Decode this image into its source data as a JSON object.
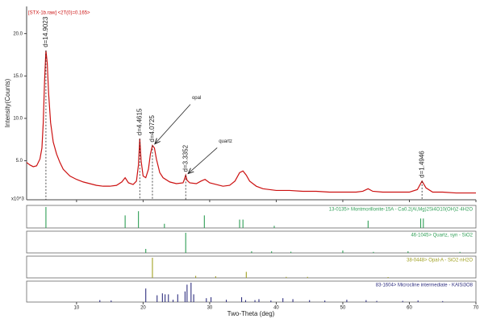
{
  "chart_data": {
    "type": "line",
    "title": "[STX-1b.raw] <2T(0)=0.165>",
    "x_label": "Two-Theta (deg)",
    "y_label": "Intensity(Counts)",
    "y_unit_label": "x10^3",
    "xlim": [
      2.5,
      70
    ],
    "xticks": [
      10,
      20,
      30,
      40,
      50,
      60,
      70
    ],
    "ylim": [
      0.4,
      23.2
    ],
    "yticks": [
      {
        "value": 5,
        "label": "5.0"
      },
      {
        "value": 10,
        "label": "10.0"
      },
      {
        "value": 15,
        "label": "15.0"
      },
      {
        "value": 20,
        "label": "20.0"
      }
    ],
    "x": [
      2.5,
      3,
      3.5,
      4,
      4.5,
      4.8,
      5.0,
      5.2,
      5.4,
      5.6,
      5.8,
      6.1,
      6.5,
      7,
      7.5,
      8,
      9,
      10,
      11,
      12,
      13,
      14,
      15,
      16,
      16.8,
      17.3,
      17.8,
      18.5,
      19.0,
      19.3,
      19.5,
      19.7,
      20.0,
      20.4,
      20.8,
      21.1,
      21.4,
      21.7,
      22.0,
      22.5,
      23,
      24,
      25,
      26,
      26.2,
      26.4,
      26.6,
      27,
      28,
      28.7,
      29.3,
      30,
      31,
      32,
      33,
      33.8,
      34.5,
      35,
      35.5,
      36,
      37,
      38,
      40,
      42,
      44,
      46,
      48,
      50,
      52,
      53,
      53.8,
      54.5,
      56,
      58,
      60,
      61.2,
      61.9,
      62.5,
      63.5,
      65,
      67,
      70
    ],
    "series": [
      {
        "color": "#cc1111",
        "values": [
          4.8,
          4.5,
          4.3,
          4.4,
          5.2,
          6.5,
          9.5,
          14.5,
          18,
          16.5,
          13,
          9.5,
          7.2,
          5.8,
          4.8,
          4.0,
          3.2,
          2.8,
          2.5,
          2.3,
          2.1,
          2.0,
          2.0,
          2.1,
          2.5,
          3.0,
          2.4,
          2.2,
          2.6,
          4.5,
          7.6,
          5.0,
          3.2,
          3.0,
          4.0,
          5.8,
          6.8,
          6.5,
          5.2,
          3.6,
          3.0,
          2.5,
          2.3,
          2.4,
          2.8,
          3.3,
          2.7,
          2.4,
          2.3,
          2.6,
          2.8,
          2.4,
          2.2,
          2.0,
          2.1,
          2.6,
          3.6,
          3.8,
          3.3,
          2.6,
          2.0,
          1.7,
          1.5,
          1.5,
          1.4,
          1.4,
          1.3,
          1.3,
          1.3,
          1.4,
          1.7,
          1.4,
          1.3,
          1.3,
          1.3,
          1.6,
          2.6,
          1.8,
          1.3,
          1.3,
          1.2,
          1.2
        ]
      }
    ],
    "d_labels": [
      {
        "text": "d=14.9023",
        "x": 5.4
      },
      {
        "text": "d=4.4615",
        "x": 19.5
      },
      {
        "text": "d=4.0725",
        "x": 21.4
      },
      {
        "text": "d=3.3352",
        "x": 26.4
      },
      {
        "text": "d=1.4946",
        "x": 61.9
      }
    ],
    "phase_labels": [
      {
        "text": "opal",
        "x": 21.4
      },
      {
        "text": "quartz",
        "x": 26.4
      }
    ],
    "reference_patterns": [
      {
        "name": "13-0135> Montmorillonite-15A - Ca0.2(Al,Mg)2Si4O10(OH)2·4H2O",
        "color": "#2e9e55",
        "positions": [
          5.4,
          17.3,
          19.3,
          23.2,
          29.2,
          34.5,
          35.0,
          39.7,
          53.8,
          61.7,
          62.1
        ],
        "values": [
          100,
          60,
          80,
          20,
          60,
          40,
          40,
          10,
          35,
          45,
          45
        ]
      },
      {
        "name": "46-1045> Quartz, syn - SiO2",
        "color": "#2e9e55",
        "positions": [
          20.4,
          26.4,
          36.3,
          39.3,
          42.2,
          50.0,
          54.6,
          59.8,
          67.6
        ],
        "values": [
          20,
          100,
          8,
          8,
          6,
          12,
          5,
          8,
          5
        ]
      },
      {
        "name": "38-0448> Opal-A - SiO2·nH2O",
        "color": "#a0a020",
        "positions": [
          21.4,
          27.9,
          30.9,
          35.5,
          41.5,
          44.7,
          56.8
        ],
        "values": [
          100,
          10,
          8,
          30,
          5,
          5,
          4
        ]
      },
      {
        "name": "83-1604> Microcline intermediate - KAlSi3O8",
        "color": "#303080",
        "positions": [
          13.5,
          15.2,
          20.4,
          22.1,
          22.9,
          23.3,
          23.8,
          24.5,
          25.2,
          26.3,
          26.6,
          27.2,
          27.6,
          29.5,
          30.2,
          32.5,
          34.8,
          35.4,
          36.8,
          37.4,
          39.2,
          41.0,
          42.5,
          45.0,
          47.3,
          50.6,
          53.5,
          55.1,
          59.0,
          61.3,
          65.0
        ],
        "values": [
          10,
          8,
          70,
          35,
          45,
          40,
          40,
          12,
          40,
          55,
          90,
          100,
          40,
          20,
          25,
          12,
          25,
          10,
          10,
          15,
          8,
          20,
          15,
          10,
          8,
          12,
          10,
          6,
          6,
          8,
          5
        ]
      }
    ]
  }
}
